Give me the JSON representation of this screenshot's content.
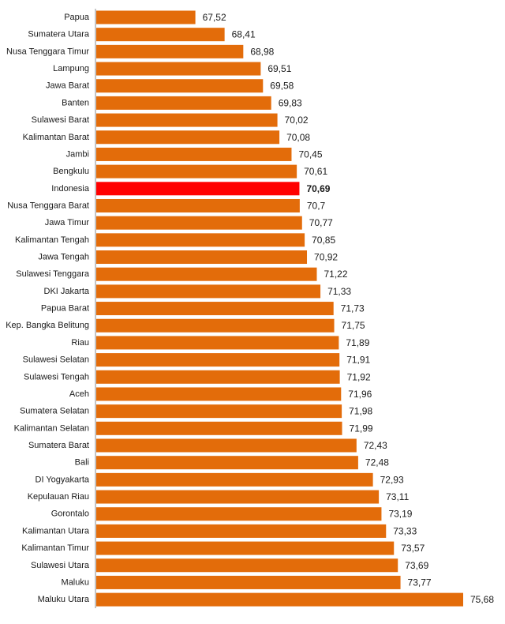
{
  "chart_data": {
    "type": "bar",
    "orientation": "horizontal",
    "title": "",
    "xlabel": "",
    "ylabel": "",
    "xlim": [
      64.5,
      75.68
    ],
    "grid": false,
    "legend": "none",
    "bar_color": "#E36C0A",
    "highlight_color": "#FF0000",
    "highlight_category": "Indonesia",
    "categories": [
      "Papua",
      "Sumatera Utara",
      "Nusa Tenggara Timur",
      "Lampung",
      "Jawa Barat",
      "Banten",
      "Sulawesi Barat",
      "Kalimantan Barat",
      "Jambi",
      "Bengkulu",
      "Indonesia",
      "Nusa Tenggara Barat",
      "Jawa Timur",
      "Kalimantan Tengah",
      "Jawa Tengah",
      "Sulawesi Tenggara",
      "DKI Jakarta",
      "Papua Barat",
      "Kep. Bangka Belitung",
      "Riau",
      "Sulawesi Selatan",
      "Sulawesi Tengah",
      "Aceh",
      "Sumatera Selatan",
      "Kalimantan Selatan",
      "Sumatera Barat",
      "Bali",
      "DI Yogyakarta",
      "Kepulauan Riau",
      "Gorontalo",
      "Kalimantan Utara",
      "Kalimantan Timur",
      "Sulawesi Utara",
      "Maluku",
      "Maluku Utara"
    ],
    "values": [
      67.52,
      68.41,
      68.98,
      69.51,
      69.58,
      69.83,
      70.02,
      70.08,
      70.45,
      70.61,
      70.69,
      70.7,
      70.77,
      70.85,
      70.92,
      71.22,
      71.33,
      71.73,
      71.75,
      71.89,
      71.91,
      71.92,
      71.96,
      71.98,
      71.99,
      72.43,
      72.48,
      72.93,
      73.11,
      73.19,
      73.33,
      73.57,
      73.69,
      73.77,
      75.68
    ],
    "value_labels": [
      "67,52",
      "68,41",
      "68,98",
      "69,51",
      "69,58",
      "69,83",
      "70,02",
      "70,08",
      "70,45",
      "70,61",
      "70,69",
      "70,7",
      "70,77",
      "70,85",
      "70,92",
      "71,22",
      "71,33",
      "71,73",
      "71,75",
      "71,89",
      "71,91",
      "71,92",
      "71,96",
      "71,98",
      "71,99",
      "72,43",
      "72,48",
      "72,93",
      "73,11",
      "73,19",
      "73,33",
      "73,57",
      "73,69",
      "73,77",
      "75,68"
    ]
  }
}
